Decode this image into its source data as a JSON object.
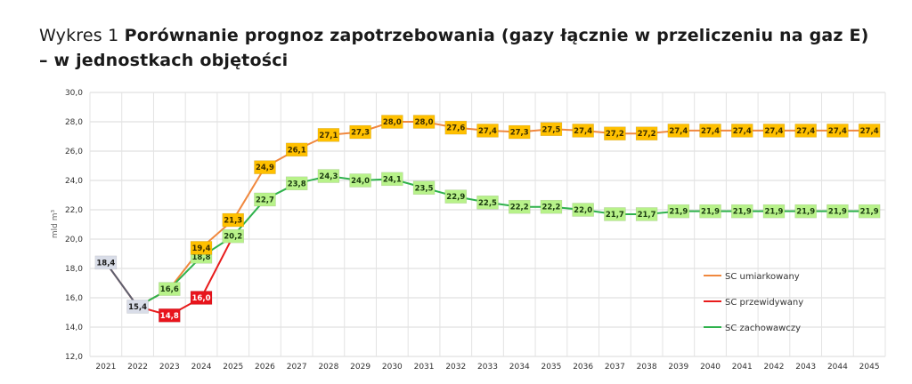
{
  "caption": {
    "prefix": "Wykres 1",
    "title": "Porównanie prognoz zapotrzebowania (gazy łącznie w przeliczeniu na gaz E) – w jednostkach objętości"
  },
  "chart_data": {
    "type": "line",
    "title": "",
    "xlabel": "",
    "ylabel": "mld m³",
    "ylim": [
      12.0,
      30.0
    ],
    "y_ticks": [
      "12,0",
      "14,0",
      "16,0",
      "18,0",
      "20,0",
      "22,0",
      "24,0",
      "26,0",
      "28,0",
      "30,0"
    ],
    "grid": true,
    "legend_position": "right",
    "categories": [
      "2021",
      "2022",
      "2023",
      "2024",
      "2025",
      "2026",
      "2027",
      "2028",
      "2029",
      "2030",
      "2031",
      "2032",
      "2033",
      "2034",
      "2035",
      "2036",
      "2037",
      "2038",
      "2039",
      "2040",
      "2041",
      "2042",
      "2043",
      "2044",
      "2045"
    ],
    "series": [
      {
        "name": "SC umiarkowany",
        "color": "#f0883e",
        "label_bg": "#ffc000",
        "label_color": "#3a2c00",
        "x": [
          "2022",
          "2023",
          "2024",
          "2025",
          "2026",
          "2027",
          "2028",
          "2029",
          "2030",
          "2031",
          "2032",
          "2033",
          "2034",
          "2035",
          "2036",
          "2037",
          "2038",
          "2039",
          "2040",
          "2041",
          "2042",
          "2043",
          "2044",
          "2045"
        ],
        "values": [
          15.4,
          16.6,
          19.4,
          21.3,
          24.9,
          26.1,
          27.1,
          27.3,
          28.0,
          28.0,
          27.6,
          27.4,
          27.3,
          27.5,
          27.4,
          27.2,
          27.2,
          27.4,
          27.4,
          27.4,
          27.4,
          27.4,
          27.4,
          27.4
        ],
        "labels": [
          "19,4",
          "21,3",
          "24,9",
          "26,1",
          "27,1",
          "27,3",
          "28,0",
          "28,0",
          "27,6",
          "27,4",
          "27,3",
          "27,5",
          "27,4",
          "27,2",
          "27,2",
          "27,4",
          "27,4",
          "27,4",
          "27,4",
          "27,4",
          "27,4",
          "27,4"
        ],
        "label_x": [
          "2024",
          "2025",
          "2026",
          "2027",
          "2028",
          "2029",
          "2030",
          "2031",
          "2032",
          "2033",
          "2034",
          "2035",
          "2036",
          "2037",
          "2038",
          "2039",
          "2040",
          "2041",
          "2042",
          "2043",
          "2044",
          "2045"
        ]
      },
      {
        "name": "SC przewidywany",
        "color": "#e81c1c",
        "label_bg": "#e8141c",
        "label_color": "#ffffff",
        "x": [
          "2021",
          "2022",
          "2023",
          "2024",
          "2025"
        ],
        "values": [
          18.4,
          15.4,
          14.8,
          16.0,
          20.2
        ],
        "labels": [
          "14,8",
          "16,0"
        ],
        "label_x": [
          "2023",
          "2024"
        ]
      },
      {
        "name": "SC zachowawczy",
        "color": "#2fb24c",
        "label_bg": "#b8f28a",
        "label_color": "#1a3a10",
        "x": [
          "2022",
          "2023",
          "2024",
          "2025",
          "2026",
          "2027",
          "2028",
          "2029",
          "2030",
          "2031",
          "2032",
          "2033",
          "2034",
          "2035",
          "2036",
          "2037",
          "2038",
          "2039",
          "2040",
          "2041",
          "2042",
          "2043",
          "2044",
          "2045"
        ],
        "values": [
          15.4,
          16.6,
          18.8,
          20.2,
          22.7,
          23.8,
          24.3,
          24.0,
          24.1,
          23.5,
          22.9,
          22.5,
          22.2,
          22.2,
          22.0,
          21.7,
          21.7,
          21.9,
          21.9,
          21.9,
          21.9,
          21.9,
          21.9,
          21.9
        ],
        "labels": [
          "16,6",
          "18,8",
          "20,2",
          "22,7",
          "23,8",
          "24,3",
          "24,0",
          "24,1",
          "23,5",
          "22,9",
          "22,5",
          "22,2",
          "22,2",
          "22,0",
          "21,7",
          "21,7",
          "21,9",
          "21,9",
          "21,9",
          "21,9",
          "21,9",
          "21,9",
          "21,9"
        ],
        "label_x": [
          "2023",
          "2024",
          "2025",
          "2026",
          "2027",
          "2028",
          "2029",
          "2030",
          "2031",
          "2032",
          "2033",
          "2034",
          "2035",
          "2036",
          "2037",
          "2038",
          "2039",
          "2040",
          "2041",
          "2042",
          "2043",
          "2044",
          "2045"
        ]
      }
    ],
    "historical": {
      "color": "#5a6270",
      "label_bg": "#d9dde8",
      "label_color": "#1a1a1a",
      "x": [
        "2021",
        "2022"
      ],
      "values": [
        18.4,
        15.4
      ],
      "labels": [
        "18,4",
        "15,4"
      ]
    }
  }
}
